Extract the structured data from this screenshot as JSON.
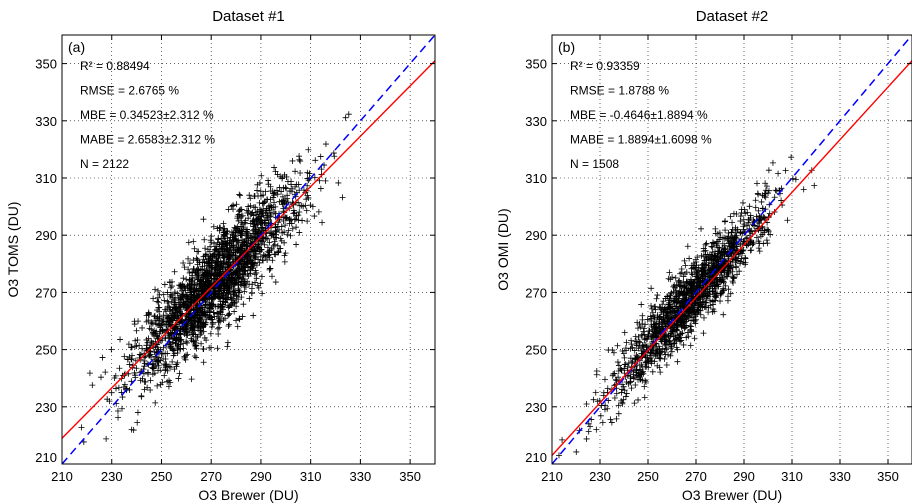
{
  "chart_data": [
    {
      "type": "scatter",
      "panel_label": "(a)",
      "title": "Dataset #1",
      "xlabel": "O3 Brewer (DU)",
      "ylabel": "O3 TOMS (DU)",
      "xlim": [
        210,
        360
      ],
      "ylim": [
        210,
        360
      ],
      "xticks": [
        210,
        230,
        250,
        270,
        290,
        310,
        330,
        350
      ],
      "yticks": [
        210,
        230,
        250,
        270,
        290,
        310,
        330,
        350
      ],
      "grid": true,
      "stats": [
        "R² = 0.88494",
        "RMSE = 2.6765 %",
        "MBE = 0.34523±2.312 %",
        "MABE = 2.6583±2.312 %",
        "N = 2122"
      ],
      "n_points": 2122,
      "cloud": {
        "x_mean": 272,
        "x_sd": 17,
        "y_slope": 0.88,
        "y_resid_sd": 8
      },
      "fit_line": {
        "color": "#ff0000",
        "points": [
          [
            210,
            219
          ],
          [
            360,
            351
          ]
        ]
      },
      "identity_line": {
        "color": "#0000ff",
        "dashed": true,
        "points": [
          [
            210,
            210
          ],
          [
            360,
            360
          ]
        ]
      }
    },
    {
      "type": "scatter",
      "panel_label": "(b)",
      "title": "Dataset #2",
      "xlabel": "O3 Brewer (DU)",
      "ylabel": "O3 OMI (DU)",
      "xlim": [
        210,
        360
      ],
      "ylim": [
        210,
        360
      ],
      "xticks": [
        210,
        230,
        250,
        270,
        290,
        310,
        330,
        350
      ],
      "yticks": [
        210,
        230,
        250,
        270,
        290,
        310,
        330,
        350
      ],
      "grid": true,
      "stats": [
        "R² = 0.93359",
        "RMSE = 1.8788 %",
        "MBE = -0.4646±1.8894 %",
        "MABE = 1.8894±1.6098 %",
        "N = 1508"
      ],
      "n_points": 1508,
      "cloud": {
        "x_mean": 268,
        "x_sd": 16,
        "y_slope": 0.93,
        "y_resid_sd": 6
      },
      "fit_line": {
        "color": "#ff0000",
        "points": [
          [
            210,
            213
          ],
          [
            360,
            351
          ]
        ]
      },
      "identity_line": {
        "color": "#0000ff",
        "dashed": true,
        "points": [
          [
            210,
            210
          ],
          [
            360,
            360
          ]
        ]
      }
    }
  ]
}
